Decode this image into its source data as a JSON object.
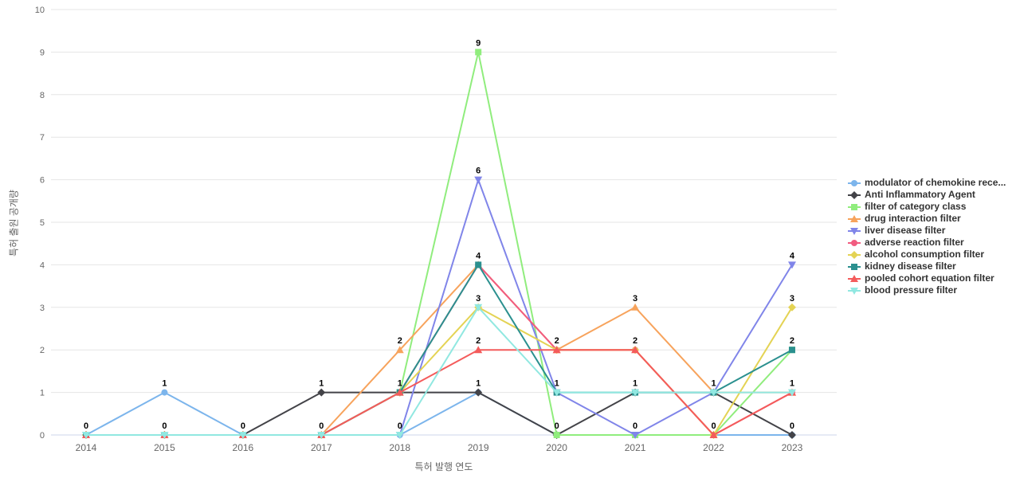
{
  "chart_data": {
    "type": "line",
    "title": "",
    "xlabel": "특허 발행 연도",
    "ylabel": "특허 출원 공개량",
    "x_categories": [
      "2014",
      "2015",
      "2016",
      "2017",
      "2018",
      "2019",
      "2020",
      "2021",
      "2022",
      "2023"
    ],
    "ylim": [
      0,
      10
    ],
    "ytick_interval": 1,
    "grid": true,
    "legend_position": "right",
    "axis_text_color": "#666666",
    "gridline_color": "#e6e6e6",
    "baseline_color": "#ccd6eb",
    "data_label_color": "#000000",
    "series": [
      {
        "name": "modulator of chemokine rece...",
        "color": "#7cb5ec",
        "marker": "circle",
        "values": [
          0,
          1,
          0,
          0,
          0,
          1,
          0,
          0,
          0,
          0
        ]
      },
      {
        "name": "Anti Inflammatory Agent",
        "color": "#434348",
        "marker": "diamond",
        "values": [
          0,
          0,
          0,
          1,
          1,
          1,
          0,
          1,
          1,
          0
        ]
      },
      {
        "name": "filter of category class",
        "color": "#90ed7d",
        "marker": "square",
        "values": [
          0,
          0,
          0,
          0,
          1,
          9,
          0,
          0,
          0,
          2
        ]
      },
      {
        "name": "drug interaction filter",
        "color": "#f7a35c",
        "marker": "triangle",
        "values": [
          0,
          0,
          0,
          0,
          2,
          4,
          2,
          3,
          1,
          1
        ]
      },
      {
        "name": "liver disease filter",
        "color": "#8085e9",
        "marker": "triangle-down",
        "values": [
          0,
          0,
          0,
          0,
          0,
          6,
          1,
          0,
          1,
          4
        ]
      },
      {
        "name": "adverse reaction filter",
        "color": "#f15c80",
        "marker": "circle",
        "values": [
          0,
          0,
          0,
          0,
          1,
          4,
          2,
          2,
          0,
          1
        ]
      },
      {
        "name": "alcohol consumption filter",
        "color": "#e4d354",
        "marker": "diamond",
        "values": [
          0,
          0,
          0,
          0,
          1,
          3,
          2,
          2,
          0,
          3
        ]
      },
      {
        "name": "kidney disease filter",
        "color": "#2b908f",
        "marker": "square",
        "values": [
          0,
          0,
          0,
          0,
          1,
          4,
          1,
          1,
          1,
          2
        ]
      },
      {
        "name": "pooled cohort equation filter",
        "color": "#f45b5b",
        "marker": "triangle",
        "values": [
          0,
          0,
          0,
          0,
          1,
          2,
          2,
          2,
          0,
          1
        ]
      },
      {
        "name": "blood pressure filter",
        "color": "#91e8e1",
        "marker": "triangle-down",
        "values": [
          0,
          0,
          0,
          0,
          0,
          3,
          1,
          1,
          1,
          1
        ]
      }
    ]
  }
}
